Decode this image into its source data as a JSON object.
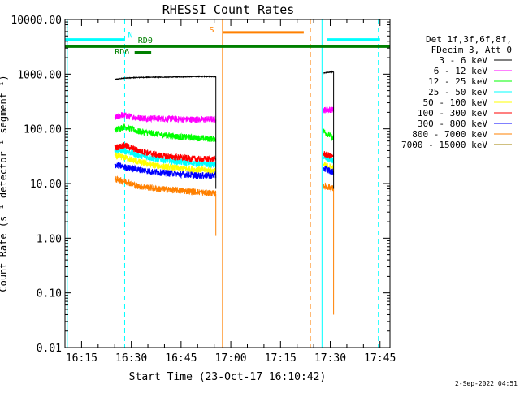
{
  "chart_data": {
    "type": "line",
    "title": "RHESSI Count Rates",
    "xlabel": "Start Time (23-Oct-17 16:10:42)",
    "ylabel": "Count Rate (s⁻¹ detector⁻¹ segment⁻¹)",
    "yscale": "log",
    "ylim": [
      0.01,
      10000
    ],
    "yticks": [
      "10000.00",
      "1000.00",
      "100.00",
      "10.00",
      "1.00",
      "0.10",
      "0.01"
    ],
    "xlim": [
      "16:10",
      "17:48"
    ],
    "xticks": [
      "16:15",
      "16:30",
      "16:45",
      "17:00",
      "17:15",
      "17:30",
      "17:45"
    ],
    "legend_position": "right",
    "legend_header": [
      "Det 1f,3f,6f,8f,",
      "FDecim 3, Att 0"
    ],
    "timestamp": "2-Sep-2022 04:51",
    "series": [
      {
        "name": "3 - 6 keV",
        "color": "#000000",
        "segments": [
          {
            "x": [
              "16:25",
              "16:28",
              "16:32",
              "16:36",
              "16:40",
              "16:44",
              "16:48",
              "16:52",
              "16:55.5"
            ],
            "y": [
              800,
              850,
              870,
              880,
              880,
              890,
              900,
              910,
              900
            ]
          },
          {
            "x": [
              "17:28",
              "17:30",
              "17:31"
            ],
            "y": [
              1050,
              1090,
              1100
            ]
          }
        ]
      },
      {
        "name": "6 - 12 keV",
        "color": "#ff00ff",
        "segments": [
          {
            "x": [
              "16:25",
              "16:27",
              "16:32",
              "16:38",
              "16:44",
              "16:50",
              "16:55.5"
            ],
            "y": [
              155,
              180,
              158,
              155,
              150,
              148,
              150
            ]
          },
          {
            "x": [
              "17:28",
              "17:30",
              "17:31"
            ],
            "y": [
              220,
              225,
              220
            ]
          }
        ]
      },
      {
        "name": "12 - 25 keV",
        "color": "#00ff00",
        "segments": [
          {
            "x": [
              "16:25",
              "16:28",
              "16:32",
              "16:38",
              "16:44",
              "16:50",
              "16:55.5"
            ],
            "y": [
              95,
              110,
              90,
              80,
              72,
              68,
              65
            ]
          },
          {
            "x": [
              "17:28",
              "17:30",
              "17:31"
            ],
            "y": [
              90,
              75,
              65
            ]
          }
        ]
      },
      {
        "name": "25 - 50 keV",
        "color": "#00ffff",
        "segments": [
          {
            "x": [
              "16:25",
              "16:28",
              "16:32",
              "16:38",
              "16:44",
              "16:50",
              "16:55.5"
            ],
            "y": [
              38,
              40,
              33,
              28,
              25,
              23,
              22
            ]
          },
          {
            "x": [
              "17:28",
              "17:30",
              "17:31"
            ],
            "y": [
              30,
              27,
              25
            ]
          }
        ]
      },
      {
        "name": "50 - 100 keV",
        "color": "#ffff00",
        "segments": [
          {
            "x": [
              "16:25",
              "16:28",
              "16:32",
              "16:38",
              "16:44",
              "16:50",
              "16:55.5"
            ],
            "y": [
              32,
              30,
              25,
              21,
              19,
              18,
              17
            ]
          },
          {
            "x": [
              "17:28",
              "17:30",
              "17:31"
            ],
            "y": [
              22,
              20,
              19
            ]
          }
        ]
      },
      {
        "name": "100 - 300 keV",
        "color": "#ff0000",
        "segments": [
          {
            "x": [
              "16:25",
              "16:28",
              "16:32",
              "16:38",
              "16:44",
              "16:50",
              "16:55.5"
            ],
            "y": [
              45,
              50,
              40,
              33,
              30,
              28,
              28
            ]
          },
          {
            "x": [
              "17:28",
              "17:30",
              "17:31"
            ],
            "y": [
              35,
              32,
              30
            ]
          }
        ]
      },
      {
        "name": "300 - 800 keV",
        "color": "#0000ff",
        "segments": [
          {
            "x": [
              "16:25",
              "16:28",
              "16:32",
              "16:38",
              "16:44",
              "16:50",
              "16:55.5"
            ],
            "y": [
              22,
              20,
              18,
              16,
              15,
              14,
              14
            ]
          },
          {
            "x": [
              "17:28",
              "17:30",
              "17:31"
            ],
            "y": [
              19,
              17,
              16
            ]
          }
        ]
      },
      {
        "name": "800 - 7000 keV",
        "color": "#ff8000",
        "segments": [
          {
            "x": [
              "16:25",
              "16:28",
              "16:32",
              "16:38",
              "16:44",
              "16:50",
              "16:55.5"
            ],
            "y": [
              12,
              11,
              9,
              8,
              7.5,
              7,
              6.5
            ]
          },
          {
            "x": [
              "17:28",
              "17:30",
              "17:31"
            ],
            "y": [
              9,
              8.5,
              8
            ]
          }
        ]
      },
      {
        "name": "7000 - 15000 keV",
        "color": "#a08000",
        "segments": []
      }
    ],
    "drops": [
      {
        "x": "16:55.5",
        "color": "#ff8000",
        "y": [
          6.5,
          1.1
        ]
      },
      {
        "x": "16:55.5",
        "color": "#000000",
        "y": [
          900,
          8
        ]
      },
      {
        "x": "17:31",
        "color": "#ff8000",
        "y": [
          8,
          0.04
        ]
      },
      {
        "x": "17:31",
        "color": "#000000",
        "y": [
          1100,
          8
        ]
      }
    ],
    "annotations": {
      "bars": [
        {
          "label": "N",
          "color": "#00ffff",
          "x": [
            "16:10",
            "16:28"
          ],
          "y": 4300,
          "label_at": "16:29",
          "label_y": 4600
        },
        {
          "label": "",
          "color": "#00ffff",
          "x": [
            "17:29",
            "17:45"
          ],
          "y": 4300
        },
        {
          "label": "S",
          "color": "#ff8000",
          "x": [
            "16:57.5",
            "17:22"
          ],
          "y": 5800,
          "label_at": "16:53.5",
          "label_y": 5800
        },
        {
          "label": "RD0",
          "color": "#008000",
          "x": [
            "16:10",
            "17:48"
          ],
          "y": 3200,
          "label_at": "16:32",
          "label_y": 3700
        },
        {
          "label": "RD6",
          "color": "#008000",
          "x": [
            "16:31",
            "16:36"
          ],
          "y": 2500,
          "label_at": "16:25",
          "label_y": 2300
        }
      ],
      "vlines_solid": [
        {
          "x": "16:10.7",
          "color": "#00ffff"
        },
        {
          "x": "16:57.5",
          "color": "#ff8000"
        },
        {
          "x": "17:27.5",
          "color": "#00ffff"
        }
      ],
      "vlines_dashed": [
        {
          "x": "16:28",
          "color": "#00ffff"
        },
        {
          "x": "17:24",
          "color": "#ff8000"
        },
        {
          "x": "17:44.5",
          "color": "#00ffff"
        }
      ]
    }
  }
}
